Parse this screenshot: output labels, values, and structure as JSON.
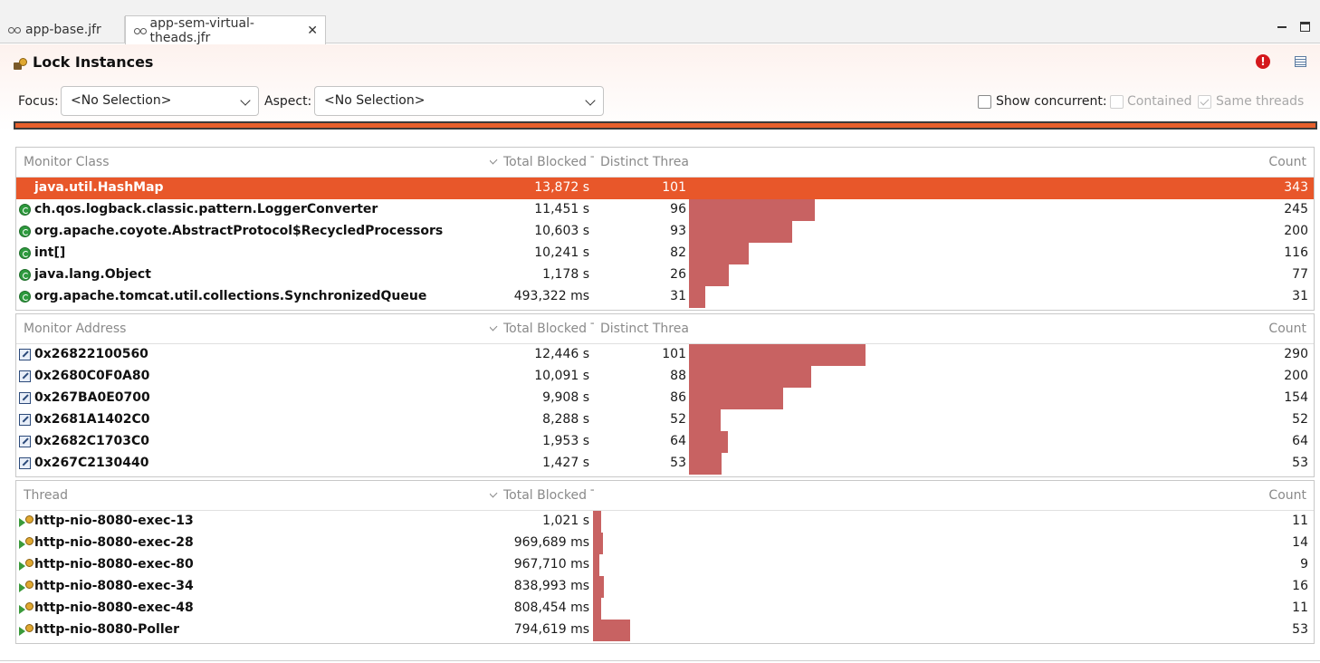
{
  "tabs": [
    {
      "label": "app-base.jfr",
      "active": false
    },
    {
      "label": "app-sem-virtual-theads.jfr",
      "active": true,
      "close": "✕"
    }
  ],
  "header": {
    "title": "Lock Instances",
    "focus_label": "Focus:",
    "focus_value": "<No Selection>",
    "aspect_label": "Aspect:",
    "aspect_value": "<No Selection>",
    "show_concurrent": "Show concurrent:",
    "contained": "Contained",
    "same_threads": "Same threads"
  },
  "colors": {
    "accent": "#e8572a",
    "bar": "#c86262"
  },
  "monitor_class": {
    "headers": {
      "name": "Monitor Class",
      "total": "Total Blocked T",
      "distinct": "Distinct Threa",
      "count": "Count"
    },
    "rows": [
      {
        "name": "java.util.HashMap",
        "total": "13,872 s",
        "distinct": "101",
        "count": "343",
        "bar": 1.0,
        "selected": true
      },
      {
        "name": "ch.qos.logback.classic.pattern.LoggerConverter",
        "total": "11,451 s",
        "distinct": "96",
        "count": "245",
        "bar": 0.714
      },
      {
        "name": "org.apache.coyote.AbstractProtocol$RecycledProcessors",
        "total": "10,603 s",
        "distinct": "93",
        "count": "200",
        "bar": 0.583
      },
      {
        "name": "int[]",
        "total": "10,241 s",
        "distinct": "82",
        "count": "116",
        "bar": 0.338
      },
      {
        "name": "java.lang.Object",
        "total": "1,178 s",
        "distinct": "26",
        "count": "77",
        "bar": 0.224
      },
      {
        "name": "org.apache.tomcat.util.collections.SynchronizedQueue",
        "total": "493,322 ms",
        "distinct": "31",
        "count": "31",
        "bar": 0.09
      }
    ]
  },
  "monitor_address": {
    "headers": {
      "name": "Monitor Address",
      "total": "Total Blocked T",
      "distinct": "Distinct Threa",
      "count": "Count"
    },
    "rows": [
      {
        "name": "0x26822100560",
        "total": "12,446 s",
        "distinct": "101",
        "count": "290",
        "bar": 1.0
      },
      {
        "name": "0x2680C0F0A80",
        "total": "10,091 s",
        "distinct": "88",
        "count": "200",
        "bar": 0.69
      },
      {
        "name": "0x267BA0E0700",
        "total": "9,908 s",
        "distinct": "86",
        "count": "154",
        "bar": 0.531
      },
      {
        "name": "0x2681A1402C0",
        "total": "8,288 s",
        "distinct": "52",
        "count": "52",
        "bar": 0.179
      },
      {
        "name": "0x2682C1703C0",
        "total": "1,953 s",
        "distinct": "64",
        "count": "64",
        "bar": 0.221
      },
      {
        "name": "0x267C2130440",
        "total": "1,427 s",
        "distinct": "53",
        "count": "53",
        "bar": 0.183
      }
    ]
  },
  "thread": {
    "headers": {
      "name": "Thread",
      "total": "Total Blocked T",
      "count": "Count"
    },
    "rows": [
      {
        "name": "http-nio-8080-exec-13",
        "total": "1,021 s",
        "count": "11",
        "bar": 0.208
      },
      {
        "name": "http-nio-8080-exec-28",
        "total": "969,689 ms",
        "count": "14",
        "bar": 0.264
      },
      {
        "name": "http-nio-8080-exec-80",
        "total": "967,710 ms",
        "count": "9",
        "bar": 0.17
      },
      {
        "name": "http-nio-8080-exec-34",
        "total": "838,993 ms",
        "count": "16",
        "bar": 0.302
      },
      {
        "name": "http-nio-8080-exec-48",
        "total": "808,454 ms",
        "count": "11",
        "bar": 0.208
      },
      {
        "name": "http-nio-8080-Poller",
        "total": "794,619 ms",
        "count": "53",
        "bar": 1.0
      }
    ]
  }
}
